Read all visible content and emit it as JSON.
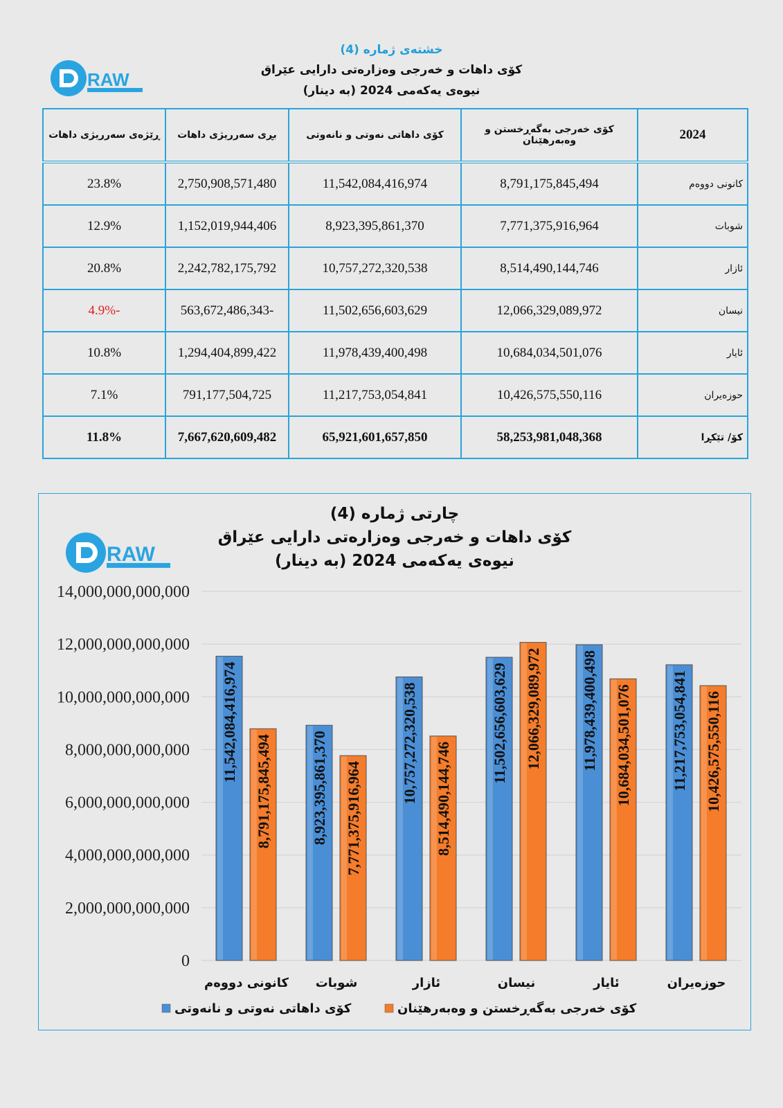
{
  "logo": {
    "text": "DRAW"
  },
  "table_section": {
    "caption": "خشتەی ژمارە (4)",
    "title": "کۆی داهات و خەرجی وەزارەتی دارایی عێراق",
    "subtitle": "نیوەی یەکەمی 2024 (بە دینار)",
    "headers": [
      "2024",
      "کۆی خەرجی بەگەڕخستن و وەبەرهێنان",
      "کۆی داهاتی نەوتی و نانەوتی",
      "بڕی سەرریژی داهات",
      "ڕێژەی سەرریژی داهات"
    ],
    "rows": [
      {
        "month": "کانونی دووەم",
        "expenditure": "8,791,175,845,494",
        "revenue": "11,542,084,416,974",
        "surplus": "2,750,908,571,480",
        "ratio": "23.8%"
      },
      {
        "month": "شوبات",
        "expenditure": "7,771,375,916,964",
        "revenue": "8,923,395,861,370",
        "surplus": "1,152,019,944,406",
        "ratio": "12.9%"
      },
      {
        "month": "ئازار",
        "expenditure": "8,514,490,144,746",
        "revenue": "10,757,272,320,538",
        "surplus": "2,242,782,175,792",
        "ratio": "20.8%"
      },
      {
        "month": "نیسان",
        "expenditure": "12,066,329,089,972",
        "revenue": "11,502,656,603,629",
        "surplus": "-563,672,486,343",
        "ratio": "-4.9%"
      },
      {
        "month": "ئایار",
        "expenditure": "10,684,034,501,076",
        "revenue": "11,978,439,400,498",
        "surplus": "1,294,404,899,422",
        "ratio": "10.8%"
      },
      {
        "month": "حوزەیران",
        "expenditure": "10,426,575,550,116",
        "revenue": "11,217,753,054,841",
        "surplus": "791,177,504,725",
        "ratio": "7.1%"
      }
    ],
    "total": {
      "month": "کۆ/ تێکڕا",
      "expenditure": "58,253,981,048,368",
      "revenue": "65,921,601,657,850",
      "surplus": "7,667,620,609,482",
      "ratio": "11.8%"
    },
    "negative_color": "#e02020"
  },
  "chart_data": {
    "type": "bar",
    "title": "چارتی ژمارە (4)",
    "subtitle1": "کۆی داهات و خەرجی وەزارەتی دارایی عێراق",
    "subtitle2": "نیوەی یەکەمی 2024 (بە دینار)",
    "categories": [
      "کانونی دووەم",
      "شوبات",
      "ئازار",
      "نیسان",
      "ئایار",
      "حوزەیران"
    ],
    "series": [
      {
        "name": "کۆی داهاتی نەوتی و نانەوتی",
        "color": "#4a8fd6",
        "values": [
          11542084416974,
          8923395861370,
          10757272320538,
          11502656603629,
          11978439400498,
          11217753054841
        ],
        "labels": [
          "11,542,084,416,974",
          "8,923,395,861,370",
          "10,757,272,320,538",
          "11,502,656,603,629",
          "11,978,439,400,498",
          "11,217,753,054,841"
        ]
      },
      {
        "name": "کۆی خەرجی بەگەڕخستن و وەبەرهێنان",
        "color": "#f57c2a",
        "values": [
          8791175845494,
          7771375916964,
          8514490144746,
          12066329089972,
          10684034501076,
          10426575550116
        ],
        "labels": [
          "8,791,175,845,494",
          "7,771,375,916,964",
          "8,514,490,144,746",
          "12,066,329,089,972",
          "10,684,034,501,076",
          "10,426,575,550,116"
        ]
      }
    ],
    "ylim": [
      0,
      14000000000000
    ],
    "yticks": [
      "0",
      "2,000,000,000,000",
      "4,000,000,000,000",
      "6,000,000,000,000",
      "8,000,000,000,000",
      "10,000,000,000,000",
      "12,000,000,000,000",
      "14,000,000,000,000"
    ],
    "grid": true,
    "legend_position": "bottom"
  }
}
